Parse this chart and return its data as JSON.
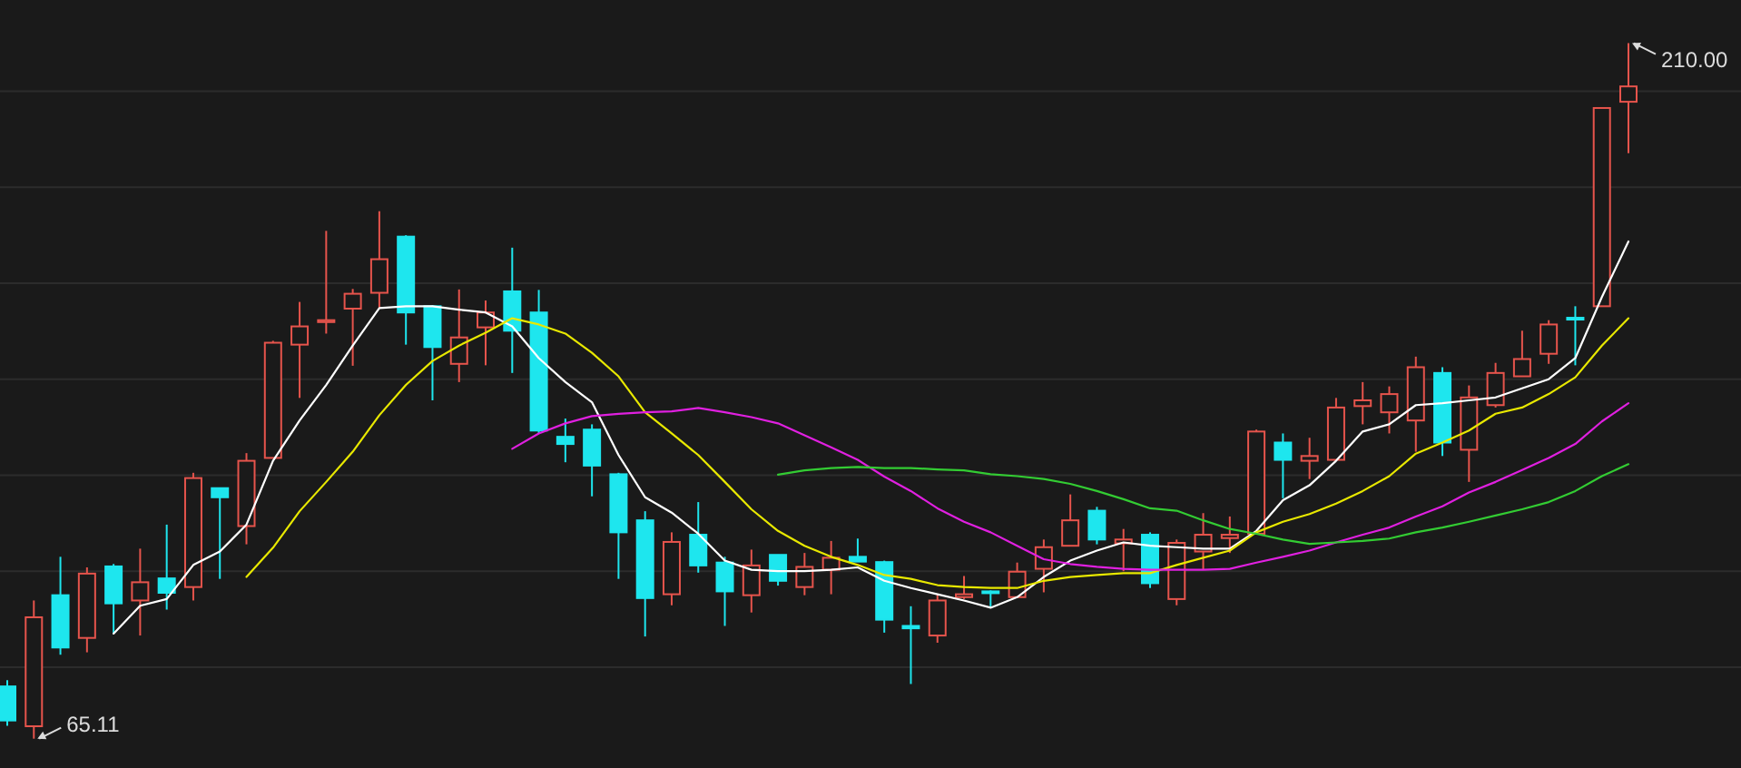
{
  "chart_data": {
    "type": "candlestick",
    "categories": [
      null,
      null,
      null,
      null,
      null,
      null,
      null,
      null,
      null,
      null,
      null,
      null,
      null,
      null,
      null,
      null,
      null,
      null,
      null,
      null,
      null,
      null,
      null,
      null,
      null,
      null,
      null,
      null,
      null,
      null,
      null,
      null,
      null,
      null,
      null,
      null,
      null,
      null,
      null,
      null,
      null,
      null,
      null,
      null,
      null,
      null,
      null,
      null,
      null,
      null,
      null,
      null,
      null,
      null,
      null,
      null,
      null,
      null,
      null,
      null,
      null,
      null
    ],
    "ohlc": [
      [
        76.0,
        77.3,
        67.8,
        68.9
      ],
      [
        67.7,
        93.9,
        65.11,
        90.4
      ],
      [
        95.0,
        103.0,
        82.6,
        84.1
      ],
      [
        86.1,
        100.8,
        83.1,
        99.5
      ],
      [
        101.0,
        101.5,
        87.0,
        93.3
      ],
      [
        93.9,
        104.7,
        86.6,
        97.7
      ],
      [
        98.5,
        109.7,
        92.0,
        95.5
      ],
      [
        96.7,
        120.5,
        93.9,
        119.4
      ],
      [
        117.3,
        117.3,
        98.4,
        115.4
      ],
      [
        109.4,
        124.6,
        105.6,
        123.0
      ],
      [
        123.6,
        148.0,
        123.6,
        147.6
      ],
      [
        147.2,
        156.1,
        136.1,
        151.0
      ],
      [
        151.9,
        170.9,
        149.5,
        152.3
      ],
      [
        154.7,
        158.8,
        142.8,
        157.8
      ],
      [
        158.0,
        175.0,
        154.8,
        165.0
      ],
      [
        169.7,
        170.0,
        147.2,
        153.9
      ],
      [
        155.2,
        155.4,
        135.6,
        146.7
      ],
      [
        143.2,
        158.7,
        139.4,
        148.7
      ],
      [
        150.8,
        156.4,
        142.9,
        153.9
      ],
      [
        158.3,
        167.4,
        141.3,
        150.1
      ],
      [
        153.9,
        158.6,
        128.7,
        129.3
      ],
      [
        128.0,
        131.8,
        122.7,
        126.5
      ],
      [
        129.5,
        130.6,
        115.6,
        122.0
      ],
      [
        120.2,
        120.5,
        98.4,
        108.1
      ],
      [
        110.6,
        112.5,
        86.4,
        94.4
      ],
      [
        95.2,
        108.1,
        92.9,
        106.1
      ],
      [
        107.6,
        114.4,
        99.7,
        101.2
      ],
      [
        101.8,
        103.0,
        88.6,
        95.8
      ],
      [
        95.0,
        104.5,
        91.4,
        101.2
      ],
      [
        103.4,
        103.4,
        97.0,
        98.0
      ],
      [
        96.7,
        103.8,
        95.0,
        100.9
      ],
      [
        100.3,
        106.3,
        95.2,
        102.8
      ],
      [
        103.0,
        106.8,
        102.0,
        102.0
      ],
      [
        101.9,
        102.2,
        87.2,
        89.9
      ],
      [
        88.6,
        92.7,
        76.5,
        88.1
      ],
      [
        86.6,
        95.2,
        85.1,
        93.9
      ],
      [
        94.6,
        99.0,
        94.2,
        95.2
      ],
      [
        95.8,
        96.0,
        92.4,
        95.5
      ],
      [
        94.6,
        101.8,
        94.6,
        99.9
      ],
      [
        100.5,
        106.6,
        95.6,
        105.0
      ],
      [
        105.3,
        116.0,
        105.3,
        110.6
      ],
      [
        112.6,
        113.4,
        105.6,
        106.6
      ],
      [
        105.8,
        108.8,
        100.0,
        106.6
      ],
      [
        107.6,
        108.1,
        96.5,
        97.5
      ],
      [
        94.2,
        106.6,
        92.9,
        105.9
      ],
      [
        104.1,
        112.1,
        100.3,
        107.6
      ],
      [
        106.9,
        111.4,
        103.8,
        107.6
      ],
      [
        107.8,
        129.5,
        107.8,
        129.1
      ],
      [
        126.8,
        128.7,
        115.2,
        123.2
      ],
      [
        123.0,
        127.8,
        119.2,
        124.0
      ],
      [
        123.2,
        136.1,
        123.2,
        134.1
      ],
      [
        134.4,
        139.4,
        130.6,
        135.6
      ],
      [
        133.1,
        138.5,
        128.7,
        136.9
      ],
      [
        131.4,
        144.7,
        124.9,
        142.5
      ],
      [
        141.3,
        142.5,
        124.0,
        126.8
      ],
      [
        125.3,
        138.7,
        118.6,
        136.2
      ],
      [
        134.6,
        143.4,
        134.1,
        141.3
      ],
      [
        140.6,
        150.1,
        140.6,
        144.2
      ],
      [
        145.3,
        152.3,
        143.2,
        151.4
      ],
      [
        152.8,
        155.2,
        142.9,
        152.5
      ],
      [
        155.2,
        196.5,
        155.2,
        196.5
      ],
      [
        197.8,
        210.0,
        187.1,
        201.0
      ]
    ],
    "colors": [
      "#1ee6ee",
      "#e6544c",
      "#1ee6ee",
      "#e6544c",
      "#1ee6ee",
      "#e6544c",
      "#1ee6ee",
      "#e6544c",
      "#1ee6ee",
      "#e6544c",
      "#e6544c",
      "#e6544c",
      "#e6544c",
      "#e6544c",
      "#e6544c",
      "#1ee6ee",
      "#1ee6ee",
      "#e6544c",
      "#e6544c",
      "#1ee6ee",
      "#1ee6ee",
      "#1ee6ee",
      "#1ee6ee",
      "#1ee6ee",
      "#1ee6ee",
      "#e6544c",
      "#1ee6ee",
      "#1ee6ee",
      "#e6544c",
      "#1ee6ee",
      "#e6544c",
      "#e6544c",
      "#1ee6ee",
      "#1ee6ee",
      "#1ee6ee",
      "#e6544c",
      "#e6544c",
      "#1ee6ee",
      "#e6544c",
      "#e6544c",
      "#e6544c",
      "#1ee6ee",
      "#e6544c",
      "#1ee6ee",
      "#e6544c",
      "#e6544c",
      "#e6544c",
      "#e6544c",
      "#1ee6ee",
      "#e6544c",
      "#e6544c",
      "#e6544c",
      "#e6544c",
      "#e6544c",
      "#1ee6ee",
      "#e6544c",
      "#e6544c",
      "#e6544c",
      "#e6544c",
      "#1ee6ee",
      "#e6544c",
      "#e6544c"
    ],
    "series": [
      {
        "type": "line",
        "color": "#ffffff",
        "values": [
          null,
          null,
          null,
          null,
          87.0,
          92.8,
          94.2,
          101.3,
          104.1,
          109.7,
          123.0,
          131.4,
          138.8,
          147.0,
          154.8,
          155.2,
          155.2,
          154.5,
          153.9,
          151.0,
          144.4,
          139.4,
          135.2,
          124.2,
          115.4,
          112.2,
          107.8,
          102.2,
          100.3,
          100.0,
          100.0,
          100.3,
          100.8,
          98.0,
          96.5,
          95.2,
          93.9,
          92.4,
          94.6,
          98.8,
          102.2,
          104.3,
          106.0,
          105.3,
          105.0,
          104.7,
          104.7,
          108.4,
          114.8,
          117.9,
          123.0,
          129.1,
          130.6,
          134.6,
          135.0,
          135.6,
          136.2,
          138.1,
          140.0,
          144.4,
          157.1,
          168.7
        ]
      },
      {
        "type": "line",
        "color": "#e8e800",
        "values": [
          null,
          null,
          null,
          null,
          null,
          null,
          null,
          null,
          null,
          98.8,
          104.9,
          112.5,
          118.6,
          124.9,
          132.5,
          138.8,
          143.8,
          147.0,
          149.7,
          152.7,
          151.4,
          149.5,
          145.5,
          140.6,
          133.1,
          128.7,
          124.2,
          118.6,
          112.9,
          108.4,
          105.3,
          103.0,
          101.3,
          99.2,
          98.4,
          97.1,
          96.7,
          96.5,
          96.5,
          98.0,
          98.8,
          99.2,
          99.6,
          99.6,
          101.3,
          102.8,
          104.3,
          108.1,
          110.3,
          111.9,
          114.1,
          116.7,
          119.8,
          124.5,
          126.8,
          129.3,
          132.8,
          134.1,
          136.9,
          140.4,
          147.0,
          152.7
        ]
      },
      {
        "type": "line",
        "color": "#e020e0",
        "values": [
          null,
          null,
          null,
          null,
          null,
          null,
          null,
          null,
          null,
          null,
          null,
          null,
          null,
          null,
          null,
          null,
          null,
          null,
          null,
          125.5,
          128.7,
          130.8,
          132.3,
          132.8,
          133.1,
          133.3,
          134.0,
          133.1,
          132.1,
          130.8,
          128.3,
          125.8,
          123.2,
          119.7,
          116.7,
          113.1,
          110.3,
          108.1,
          105.3,
          102.5,
          101.5,
          100.9,
          100.5,
          100.3,
          100.3,
          100.3,
          100.5,
          101.8,
          103.0,
          104.3,
          106.0,
          107.6,
          109.1,
          111.4,
          113.5,
          116.4,
          118.6,
          121.1,
          123.6,
          126.5,
          131.2,
          135.0
        ]
      },
      {
        "type": "line",
        "color": "#33cc33",
        "values": [
          null,
          null,
          null,
          null,
          null,
          null,
          null,
          null,
          null,
          null,
          null,
          null,
          null,
          null,
          null,
          null,
          null,
          null,
          null,
          null,
          null,
          null,
          null,
          null,
          null,
          null,
          null,
          null,
          null,
          120.1,
          121.0,
          121.5,
          121.7,
          121.5,
          121.5,
          121.2,
          121.0,
          120.2,
          119.8,
          119.2,
          118.2,
          116.7,
          115.0,
          113.1,
          112.6,
          110.6,
          108.8,
          107.8,
          106.6,
          105.7,
          106.0,
          106.3,
          106.8,
          108.1,
          109.1,
          110.3,
          111.6,
          112.9,
          114.4,
          116.7,
          119.8,
          122.3
        ]
      }
    ],
    "ylim": [
      59,
      219
    ],
    "yticks": [
      {
        "value": 80,
        "label": null
      },
      {
        "value": 100,
        "label": null
      },
      {
        "value": 120,
        "label": null
      },
      {
        "value": 140,
        "label": null
      },
      {
        "value": 160,
        "label": null
      },
      {
        "value": 180,
        "label": null
      },
      {
        "value": 200,
        "label": null
      }
    ],
    "grid": "y",
    "annotations": [
      "210.00",
      "65.11"
    ]
  }
}
